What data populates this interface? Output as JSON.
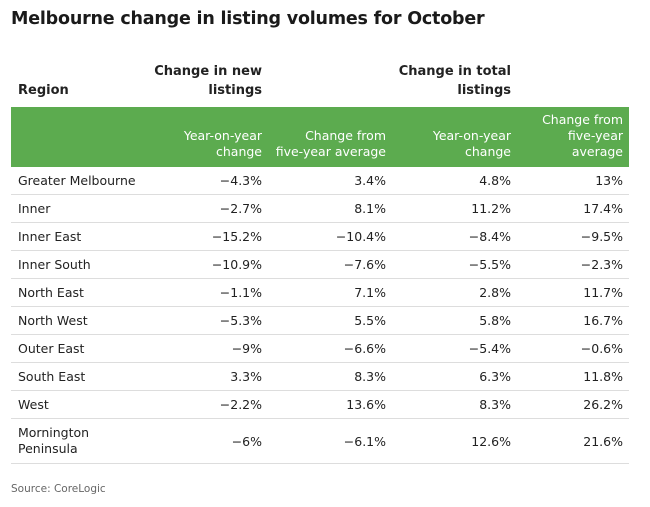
{
  "chart_data": {
    "type": "table",
    "title": "Melbourne change in listing volumes for October",
    "group_headers": {
      "region": "Region",
      "new_listings": "Change in new listings",
      "total_listings": "Change in total listings"
    },
    "columns": [
      "Year-on-year change",
      "Change from five-year average",
      "Year-on-year change",
      "Change from five-year average"
    ],
    "rows": [
      {
        "region": "Greater Melbourne",
        "values": [
          "−4.3%",
          "3.4%",
          "4.8%",
          "13%"
        ]
      },
      {
        "region": "Inner",
        "values": [
          "−2.7%",
          "8.1%",
          "11.2%",
          "17.4%"
        ]
      },
      {
        "region": "Inner East",
        "values": [
          "−15.2%",
          "−10.4%",
          "−8.4%",
          "−9.5%"
        ]
      },
      {
        "region": "Inner South",
        "values": [
          "−10.9%",
          "−7.6%",
          "−5.5%",
          "−2.3%"
        ]
      },
      {
        "region": "North East",
        "values": [
          "−1.1%",
          "7.1%",
          "2.8%",
          "11.7%"
        ]
      },
      {
        "region": "North West",
        "values": [
          "−5.3%",
          "5.5%",
          "5.8%",
          "16.7%"
        ]
      },
      {
        "region": "Outer East",
        "values": [
          "−9%",
          "−6.6%",
          "−5.4%",
          "−0.6%"
        ]
      },
      {
        "region": "South East",
        "values": [
          "3.3%",
          "8.3%",
          "6.3%",
          "11.8%"
        ]
      },
      {
        "region": "West",
        "values": [
          "−2.2%",
          "13.6%",
          "8.3%",
          "26.2%"
        ]
      },
      {
        "region": "Mornington Peninsula",
        "values": [
          "−6%",
          "−6.1%",
          "12.6%",
          "21.6%"
        ]
      }
    ],
    "source": "Source: CoreLogic",
    "colors": {
      "header_band": "#5cab4f",
      "header_text": "#ffffff"
    }
  }
}
